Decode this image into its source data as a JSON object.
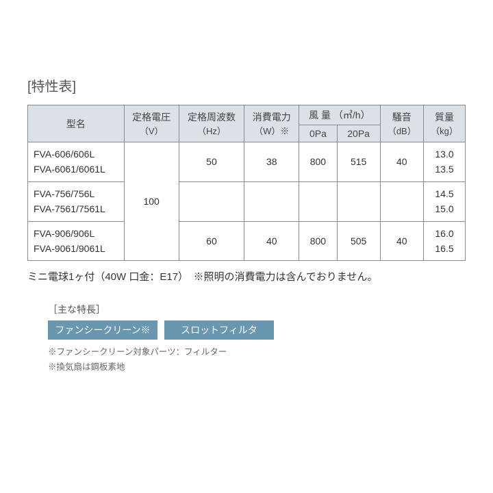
{
  "title": "[特性表]",
  "columns": {
    "model": "型名",
    "voltage": "定格電圧",
    "voltage_unit": "（V）",
    "freq": "定格周波数",
    "freq_unit": "（Hz）",
    "power": "消費電力",
    "power_unit": "（W）※",
    "airflow": "風 量 （㎥/h）",
    "airflow_0": "0Pa",
    "airflow_20": "20Pa",
    "noise": "騒音",
    "noise_unit": "（dB）",
    "mass": "質量",
    "mass_unit": "（kg）"
  },
  "voltage_value": "100",
  "rows": [
    {
      "model_a": "FVA-606/606L",
      "model_b": "FVA-6061/6061L",
      "freq": "50",
      "power": "38",
      "air0": "800",
      "air20": "515",
      "noise": "40",
      "mass_a": "13.0",
      "mass_b": "13.5"
    },
    {
      "model_a": "FVA-756/756L",
      "model_b": "FVA-7561/7561L",
      "freq": "",
      "power": "",
      "air0": "",
      "air20": "",
      "noise": "",
      "mass_a": "14.5",
      "mass_b": "15.0"
    },
    {
      "model_a": "FVA-906/906L",
      "model_b": "FVA-9061/9061L",
      "freq": "60",
      "power": "40",
      "air0": "800",
      "air20": "505",
      "noise": "40",
      "mass_a": "16.0",
      "mass_b": "16.5"
    }
  ],
  "note": "ミニ電球1ヶ付（40W 口金：E17）　※照明の消費電力は含んでおりません。",
  "features_title": "［主な特長］",
  "badges": [
    "ファンシークリーン※",
    "スロットフィルタ"
  ],
  "feature_notes": [
    "※ファンシークリーン対象パーツ：フィルター",
    "※換気扇は鋼板素地"
  ],
  "styling": {
    "header_bg": "#dbe1e4",
    "border_color": "#8a8a8a",
    "badge_bg": "#6a97b0",
    "badge_text": "#ffffff",
    "body_bg": "#ffffff",
    "text_color": "#333333",
    "title_fontsize": 20,
    "table_fontsize": 14,
    "note_fontsize": 15,
    "feature_note_fontsize": 12.5
  }
}
